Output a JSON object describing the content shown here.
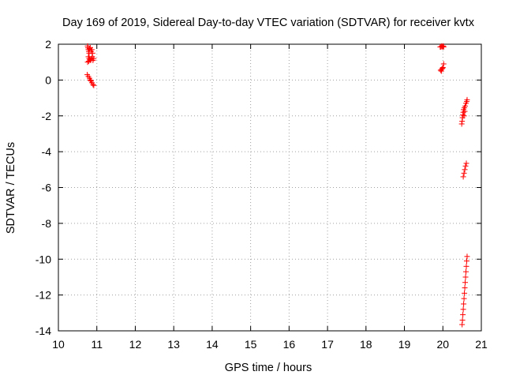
{
  "chart_data": {
    "type": "scatter",
    "title": "Day 169 of 2019, Sidereal Day-to-day VTEC variation (SDTVAR) for receiver kvtx",
    "xlabel": "GPS time / hours",
    "ylabel": "SDTVAR / TECUs",
    "xlim": [
      10,
      21
    ],
    "ylim": [
      -14,
      2
    ],
    "xticks": [
      10,
      11,
      12,
      13,
      14,
      15,
      16,
      17,
      18,
      19,
      20,
      21
    ],
    "yticks": [
      -14,
      -12,
      -10,
      -8,
      -6,
      -4,
      -2,
      0,
      2
    ],
    "grid": true,
    "legend": "none",
    "marker": "+",
    "color": "#ff0000",
    "series": [
      {
        "values": [
          [
            10.76,
            1.9
          ],
          [
            10.77,
            1.8
          ],
          [
            10.78,
            1.7
          ],
          [
            10.79,
            1.6
          ],
          [
            10.8,
            1.5
          ],
          [
            10.78,
            1.3
          ],
          [
            10.8,
            1.2
          ],
          [
            10.82,
            1.15
          ],
          [
            10.84,
            1.1
          ],
          [
            10.86,
            1.2
          ],
          [
            10.88,
            1.3
          ],
          [
            10.9,
            1.1
          ],
          [
            10.92,
            1.2
          ],
          [
            10.85,
            1.6
          ],
          [
            10.87,
            1.7
          ],
          [
            10.83,
            1.8
          ],
          [
            10.81,
            1.75
          ],
          [
            10.89,
            1.5
          ],
          [
            10.76,
            1.0
          ],
          [
            10.79,
            1.05
          ],
          [
            10.75,
            0.3
          ],
          [
            10.78,
            0.2
          ],
          [
            10.81,
            0.1
          ],
          [
            10.83,
            0.0
          ],
          [
            10.85,
            -0.05
          ],
          [
            10.87,
            -0.15
          ],
          [
            10.9,
            -0.25
          ],
          [
            10.92,
            -0.3
          ],
          [
            19.93,
            1.85
          ],
          [
            19.95,
            1.85
          ],
          [
            19.97,
            1.9
          ],
          [
            19.99,
            1.85
          ],
          [
            20.01,
            1.9
          ],
          [
            20.02,
            1.85
          ],
          [
            19.94,
            0.55
          ],
          [
            19.96,
            0.5
          ],
          [
            19.97,
            0.6
          ],
          [
            19.99,
            0.65
          ],
          [
            20.0,
            0.7
          ],
          [
            20.02,
            0.9
          ],
          [
            20.49,
            -2.45
          ],
          [
            20.5,
            -2.3
          ],
          [
            20.51,
            -2.1
          ],
          [
            20.52,
            -1.95
          ],
          [
            20.53,
            -1.8
          ],
          [
            20.54,
            -1.65
          ],
          [
            20.56,
            -1.55
          ],
          [
            20.58,
            -1.45
          ],
          [
            20.6,
            -1.3
          ],
          [
            20.62,
            -1.2
          ],
          [
            20.63,
            -1.1
          ],
          [
            20.57,
            -1.75
          ],
          [
            20.55,
            -2.0
          ],
          [
            20.53,
            -5.4
          ],
          [
            20.55,
            -5.2
          ],
          [
            20.57,
            -5.0
          ],
          [
            20.59,
            -4.8
          ],
          [
            20.61,
            -4.65
          ],
          [
            20.5,
            -13.65
          ],
          [
            20.51,
            -13.4
          ],
          [
            20.52,
            -13.1
          ],
          [
            20.53,
            -12.8
          ],
          [
            20.54,
            -12.5
          ],
          [
            20.55,
            -12.2
          ],
          [
            20.56,
            -11.9
          ],
          [
            20.57,
            -11.6
          ],
          [
            20.58,
            -11.3
          ],
          [
            20.59,
            -11.0
          ],
          [
            20.6,
            -10.7
          ],
          [
            20.61,
            -10.4
          ],
          [
            20.62,
            -10.1
          ],
          [
            20.63,
            -9.85
          ]
        ]
      }
    ]
  }
}
